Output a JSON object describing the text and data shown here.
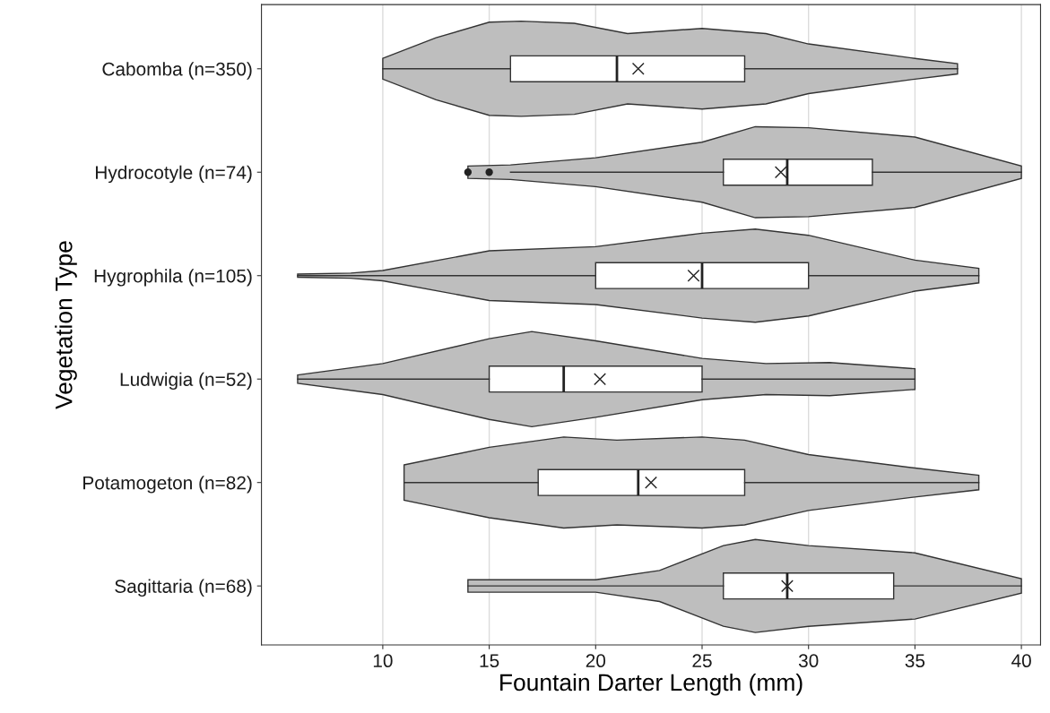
{
  "chart_data": {
    "type": "box",
    "orientation": "horizontal",
    "xlabel": "Fountain Darter Length (mm)",
    "ylabel": "Vegetation Type",
    "categories": [
      "Cabomba (n=350)",
      "Hydrocotyle (n=74)",
      "Hygrophila (n=105)",
      "Ludwigia (n=52)",
      "Potamogeton (n=82)",
      "Sagittaria (n=68)"
    ],
    "xlim": [
      4.3,
      40.9
    ],
    "xticks": [
      10,
      15,
      20,
      25,
      30,
      35,
      40
    ],
    "grid": "x",
    "marker": "cross",
    "series": [
      {
        "color": "#ffffff",
        "boxes": [
          {
            "low": 10,
            "q1": 16,
            "median": 21,
            "q3": 27,
            "high": 37,
            "mean": 22
          },
          {
            "low": 16,
            "q1": 26,
            "median": 29,
            "q3": 33,
            "high": 40,
            "mean": 28.7,
            "outliers": [
              14,
              15
            ]
          },
          {
            "low": 6,
            "q1": 20,
            "median": 25,
            "q3": 30,
            "high": 38,
            "mean": 24.6
          },
          {
            "low": 6,
            "q1": 15,
            "median": 18.5,
            "q3": 25,
            "high": 35,
            "mean": 20.2
          },
          {
            "low": 11,
            "q1": 17.3,
            "median": 22,
            "q3": 27,
            "high": 38,
            "mean": 22.6
          },
          {
            "low": 14,
            "q1": 26,
            "median": 29,
            "q3": 34,
            "high": 40,
            "mean": 29
          }
        ]
      }
    ]
  }
}
